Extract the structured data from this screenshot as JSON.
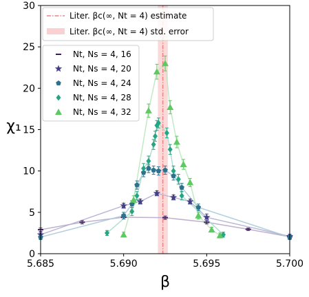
{
  "chart_data": {
    "type": "scatter",
    "xlabel": "β",
    "ylabel": "χ₁",
    "xlim": [
      5.685,
      5.7
    ],
    "ylim": [
      0,
      30
    ],
    "xticks": [
      5.685,
      5.69,
      5.695,
      5.7
    ],
    "xtick_labels": [
      "5.685",
      "5.690",
      "5.695",
      "5.700"
    ],
    "yticks": [
      0,
      5,
      10,
      15,
      20,
      25,
      30
    ],
    "ytick_labels": [
      "0",
      "5",
      "10",
      "15",
      "20",
      "25",
      "30"
    ],
    "grid": false,
    "reference": {
      "beta_c": 5.69236,
      "std_error": 0.0003,
      "line_label": "Liter. βc(∞, Nt = 4) estimate",
      "band_label": "Liter. βc(∞, Nt = 4) std. error",
      "line_color": "#f08080",
      "band_color": "#fbd0d0"
    },
    "legend_position": "upper-left",
    "series": [
      {
        "name": "Nt, Ns = 4, 16",
        "marker": "hline",
        "color": "#3b1c5a",
        "line_color": "#b8a9c9",
        "points": [
          {
            "x": 5.685,
            "y": 2.9,
            "e": 0.2
          },
          {
            "x": 5.6875,
            "y": 3.8,
            "e": 0.2
          },
          {
            "x": 5.69,
            "y": 4.4,
            "e": 0.2
          },
          {
            "x": 5.6925,
            "y": 4.35,
            "e": 0.2
          },
          {
            "x": 5.695,
            "y": 3.8,
            "e": 0.2
          },
          {
            "x": 5.6975,
            "y": 2.95,
            "e": 0.15
          },
          {
            "x": 5.7,
            "y": 2.05,
            "e": 0.15
          }
        ]
      },
      {
        "name": "Nt, Ns = 4, 20",
        "marker": "star",
        "color": "#433e85",
        "line_color": "#b3b0d3",
        "points": [
          {
            "x": 5.685,
            "y": 2.3,
            "e": 0.25
          },
          {
            "x": 5.69,
            "y": 5.8,
            "e": 0.3
          },
          {
            "x": 5.691,
            "y": 6.3,
            "e": 0.3
          },
          {
            "x": 5.692,
            "y": 7.3,
            "e": 0.3
          },
          {
            "x": 5.693,
            "y": 6.8,
            "e": 0.3
          },
          {
            "x": 5.694,
            "y": 6.3,
            "e": 0.3
          },
          {
            "x": 5.695,
            "y": 4.4,
            "e": 0.4
          },
          {
            "x": 5.7,
            "y": 2.1,
            "e": 0.25
          }
        ]
      },
      {
        "name": "Nt, Ns = 4, 24",
        "marker": "pentagon",
        "color": "#2c728e",
        "line_color": "#a9c9d6",
        "points": [
          {
            "x": 5.685,
            "y": 2.0,
            "e": 0.3
          },
          {
            "x": 5.69,
            "y": 4.6,
            "e": 0.4
          },
          {
            "x": 5.6905,
            "y": 6.0,
            "e": 0.4
          },
          {
            "x": 5.6908,
            "y": 8.3,
            "e": 0.5
          },
          {
            "x": 5.6912,
            "y": 9.8,
            "e": 0.5
          },
          {
            "x": 5.6915,
            "y": 10.3,
            "e": 0.5
          },
          {
            "x": 5.6918,
            "y": 10.1,
            "e": 0.5
          },
          {
            "x": 5.6921,
            "y": 10.0,
            "e": 0.5
          },
          {
            "x": 5.6925,
            "y": 10.1,
            "e": 0.5
          },
          {
            "x": 5.693,
            "y": 9.4,
            "e": 0.5
          },
          {
            "x": 5.6935,
            "y": 8.0,
            "e": 0.5
          },
          {
            "x": 5.6945,
            "y": 5.6,
            "e": 0.4
          },
          {
            "x": 5.7,
            "y": 2.0,
            "e": 0.3
          }
        ]
      },
      {
        "name": "Nt, Ns = 4, 28",
        "marker": "diamond",
        "color": "#25a584",
        "line_color": "#a7dccd",
        "points": [
          {
            "x": 5.689,
            "y": 2.5,
            "e": 0.3
          },
          {
            "x": 5.6905,
            "y": 5.1,
            "e": 0.5
          },
          {
            "x": 5.6908,
            "y": 7.0,
            "e": 0.5
          },
          {
            "x": 5.6912,
            "y": 10.3,
            "e": 0.6
          },
          {
            "x": 5.6915,
            "y": 11.2,
            "e": 0.6
          },
          {
            "x": 5.6918,
            "y": 13.2,
            "e": 0.6
          },
          {
            "x": 5.6919,
            "y": 14.2,
            "e": 0.6
          },
          {
            "x": 5.692,
            "y": 15.5,
            "e": 0.6
          },
          {
            "x": 5.6921,
            "y": 15.8,
            "e": 0.6
          },
          {
            "x": 5.6926,
            "y": 14.6,
            "e": 0.6
          },
          {
            "x": 5.6928,
            "y": 12.6,
            "e": 0.6
          },
          {
            "x": 5.693,
            "y": 10.0,
            "e": 0.6
          },
          {
            "x": 5.6933,
            "y": 9.0,
            "e": 0.6
          },
          {
            "x": 5.6935,
            "y": 7.0,
            "e": 0.5
          },
          {
            "x": 5.696,
            "y": 2.3,
            "e": 0.3
          }
        ]
      },
      {
        "name": "Nt, Ns = 4, 32",
        "marker": "triangle",
        "color": "#5ec962",
        "line_color": "#bde7be",
        "points": [
          {
            "x": 5.69,
            "y": 2.3,
            "e": 0.3
          },
          {
            "x": 5.6906,
            "y": 6.5,
            "e": 0.5
          },
          {
            "x": 5.6915,
            "y": 17.3,
            "e": 0.8
          },
          {
            "x": 5.692,
            "y": 22.0,
            "e": 0.9
          },
          {
            "x": 5.6925,
            "y": 23.0,
            "e": 0.9
          },
          {
            "x": 5.6928,
            "y": 17.7,
            "e": 0.8
          },
          {
            "x": 5.6932,
            "y": 13.5,
            "e": 0.7
          },
          {
            "x": 5.6936,
            "y": 10.8,
            "e": 0.6
          },
          {
            "x": 5.694,
            "y": 8.6,
            "e": 0.5
          },
          {
            "x": 5.6945,
            "y": 4.6,
            "e": 0.4
          },
          {
            "x": 5.6953,
            "y": 2.9,
            "e": 0.3
          },
          {
            "x": 5.6958,
            "y": 2.2,
            "e": 0.3
          }
        ]
      }
    ]
  }
}
